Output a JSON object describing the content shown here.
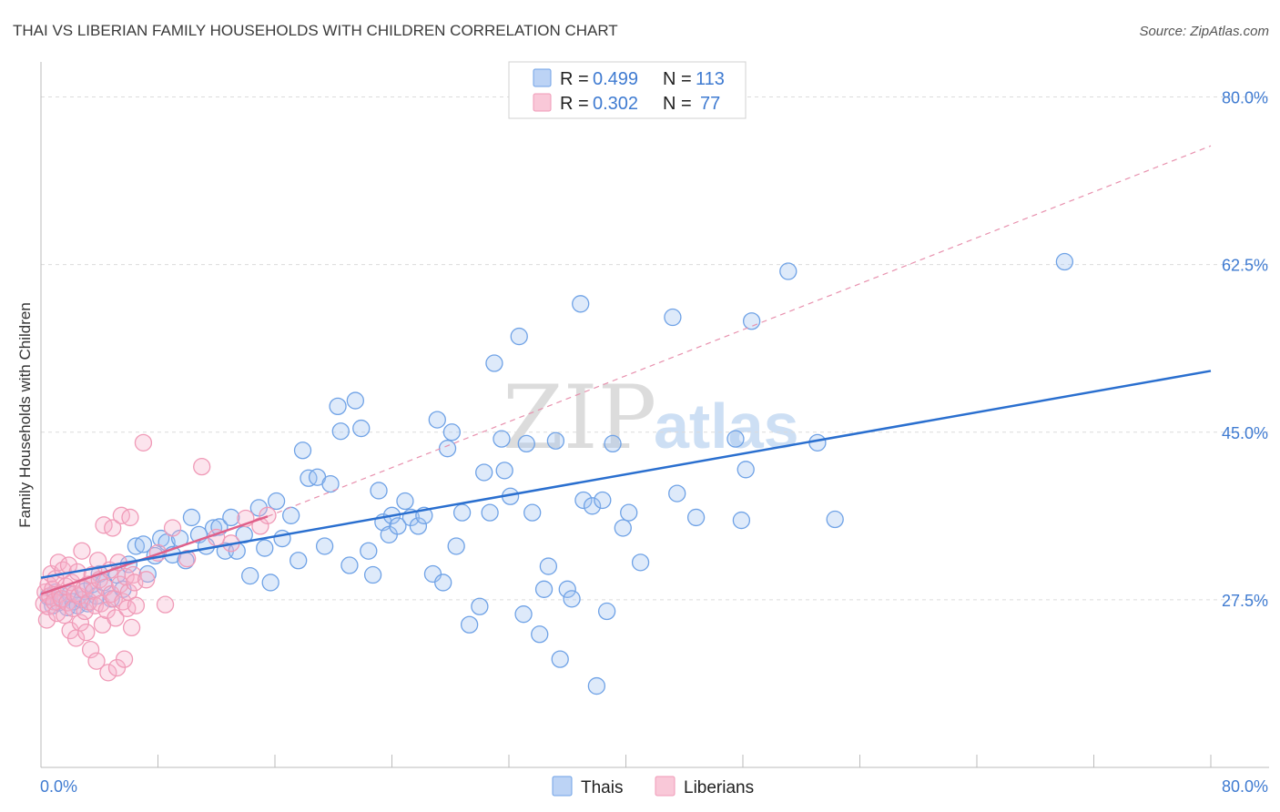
{
  "chart_data": {
    "type": "scatter",
    "title": "THAI VS LIBERIAN FAMILY HOUSEHOLDS WITH CHILDREN CORRELATION CHART",
    "source": "Source: ZipAtlas.com",
    "xlabel": "",
    "ylabel": "Family Households with Children",
    "xlim": [
      0,
      80
    ],
    "ylim": [
      10,
      83
    ],
    "x_tick_labels": [
      "0.0%",
      "80.0%"
    ],
    "y_ticks": [
      27.5,
      45.0,
      62.5,
      80.0
    ],
    "y_tick_labels": [
      "27.5%",
      "45.0%",
      "62.5%",
      "80.0%"
    ],
    "grid": true,
    "watermark": {
      "zip": "ZIP",
      "atlas": "atlas"
    },
    "legend": {
      "rows": [
        {
          "r_label": "R =",
          "r_value": "0.499",
          "n_label": "N =",
          "n_value": "113"
        },
        {
          "r_label": "R =",
          "r_value": "0.302",
          "n_label": "N =",
          "n_value": "77"
        }
      ]
    },
    "series": [
      {
        "name": "Thais",
        "color": "#6fa2e6",
        "line_color": "#2a6fcf",
        "trend": {
          "x": [
            0,
            80
          ],
          "y": [
            29.8,
            51.4
          ]
        },
        "points": [
          [
            0.5,
            27.8
          ],
          [
            0.8,
            26.9
          ],
          [
            1.0,
            28.3
          ],
          [
            1.2,
            27.2
          ],
          [
            1.5,
            27.6
          ],
          [
            1.8,
            26.7
          ],
          [
            2.0,
            28.1
          ],
          [
            2.2,
            27.3
          ],
          [
            2.5,
            26.9
          ],
          [
            2.8,
            27.5
          ],
          [
            3.0,
            28.4
          ],
          [
            3.2,
            27.1
          ],
          [
            3.5,
            29.1
          ],
          [
            3.8,
            27.9
          ],
          [
            4.0,
            30.2
          ],
          [
            4.3,
            29.3
          ],
          [
            4.8,
            27.6
          ],
          [
            5.2,
            30.1
          ],
          [
            5.6,
            28.6
          ],
          [
            6.0,
            31.2
          ],
          [
            6.5,
            33.1
          ],
          [
            7.0,
            33.3
          ],
          [
            7.3,
            30.2
          ],
          [
            7.8,
            32.1
          ],
          [
            8.2,
            33.9
          ],
          [
            8.6,
            33.5
          ],
          [
            9.0,
            32.2
          ],
          [
            9.5,
            33.9
          ],
          [
            9.9,
            31.6
          ],
          [
            10.3,
            36.1
          ],
          [
            10.8,
            34.3
          ],
          [
            11.3,
            33.1
          ],
          [
            11.8,
            35.0
          ],
          [
            12.2,
            35.1
          ],
          [
            12.6,
            32.6
          ],
          [
            13.0,
            36.1
          ],
          [
            13.4,
            32.6
          ],
          [
            13.9,
            34.3
          ],
          [
            14.3,
            30.0
          ],
          [
            14.9,
            37.1
          ],
          [
            15.3,
            32.9
          ],
          [
            15.7,
            29.3
          ],
          [
            16.1,
            37.8
          ],
          [
            16.5,
            33.9
          ],
          [
            17.1,
            36.3
          ],
          [
            17.6,
            31.6
          ],
          [
            17.9,
            43.1
          ],
          [
            18.3,
            40.2
          ],
          [
            18.9,
            40.3
          ],
          [
            19.4,
            33.1
          ],
          [
            19.8,
            39.6
          ],
          [
            20.3,
            47.7
          ],
          [
            20.5,
            45.1
          ],
          [
            21.1,
            31.1
          ],
          [
            21.5,
            48.3
          ],
          [
            21.9,
            45.4
          ],
          [
            22.4,
            32.6
          ],
          [
            22.7,
            30.1
          ],
          [
            23.1,
            38.9
          ],
          [
            23.4,
            35.6
          ],
          [
            23.8,
            34.3
          ],
          [
            24.0,
            36.3
          ],
          [
            24.4,
            35.2
          ],
          [
            24.9,
            37.8
          ],
          [
            25.3,
            36.1
          ],
          [
            25.8,
            35.2
          ],
          [
            26.2,
            36.3
          ],
          [
            26.8,
            30.2
          ],
          [
            27.1,
            46.3
          ],
          [
            27.5,
            29.3
          ],
          [
            27.8,
            43.3
          ],
          [
            28.1,
            45.0
          ],
          [
            28.4,
            33.1
          ],
          [
            28.8,
            36.6
          ],
          [
            29.3,
            24.9
          ],
          [
            30.0,
            26.8
          ],
          [
            30.3,
            40.8
          ],
          [
            30.7,
            36.6
          ],
          [
            31.0,
            52.2
          ],
          [
            31.5,
            44.3
          ],
          [
            31.7,
            41.0
          ],
          [
            32.1,
            38.3
          ],
          [
            32.7,
            55.0
          ],
          [
            33.0,
            26.0
          ],
          [
            33.2,
            43.8
          ],
          [
            33.6,
            36.6
          ],
          [
            34.1,
            23.9
          ],
          [
            34.4,
            28.6
          ],
          [
            34.7,
            31.0
          ],
          [
            35.2,
            44.1
          ],
          [
            35.5,
            21.3
          ],
          [
            36.0,
            28.6
          ],
          [
            36.3,
            27.6
          ],
          [
            36.9,
            58.4
          ],
          [
            37.1,
            37.9
          ],
          [
            37.7,
            37.3
          ],
          [
            38.0,
            18.5
          ],
          [
            38.4,
            37.9
          ],
          [
            38.7,
            26.3
          ],
          [
            39.1,
            43.8
          ],
          [
            39.8,
            35.0
          ],
          [
            40.2,
            36.6
          ],
          [
            41.0,
            31.4
          ],
          [
            43.2,
            57.0
          ],
          [
            43.5,
            38.6
          ],
          [
            44.8,
            36.1
          ],
          [
            47.5,
            44.3
          ],
          [
            47.9,
            35.8
          ],
          [
            48.2,
            41.1
          ],
          [
            48.6,
            56.6
          ],
          [
            51.1,
            61.8
          ],
          [
            53.1,
            43.9
          ],
          [
            54.3,
            35.9
          ],
          [
            70.0,
            62.8
          ]
        ]
      },
      {
        "name": "Liberians",
        "color": "#f09ab7",
        "line_color": "#e0608a",
        "trend": {
          "x": [
            0,
            15.5
          ],
          "y": [
            28.1,
            36.2
          ]
        },
        "trend_dashed": {
          "x": [
            15.5,
            80
          ],
          "y": [
            36.2,
            74.9
          ]
        },
        "points": [
          [
            0.2,
            27.1
          ],
          [
            0.3,
            28.3
          ],
          [
            0.4,
            25.4
          ],
          [
            0.5,
            29.1
          ],
          [
            0.5,
            26.8
          ],
          [
            0.6,
            27.9
          ],
          [
            0.7,
            30.2
          ],
          [
            0.8,
            28.6
          ],
          [
            0.9,
            27.3
          ],
          [
            1.0,
            29.7
          ],
          [
            1.1,
            26.1
          ],
          [
            1.2,
            31.4
          ],
          [
            1.3,
            28.1
          ],
          [
            1.4,
            27.6
          ],
          [
            1.5,
            30.6
          ],
          [
            1.6,
            25.9
          ],
          [
            1.7,
            28.9
          ],
          [
            1.8,
            27.2
          ],
          [
            1.9,
            31.1
          ],
          [
            2.0,
            24.3
          ],
          [
            2.1,
            29.3
          ],
          [
            2.2,
            26.6
          ],
          [
            2.3,
            28.1
          ],
          [
            2.4,
            23.5
          ],
          [
            2.5,
            30.4
          ],
          [
            2.6,
            27.9
          ],
          [
            2.7,
            25.1
          ],
          [
            2.8,
            32.6
          ],
          [
            2.9,
            28.6
          ],
          [
            3.0,
            26.3
          ],
          [
            3.1,
            24.1
          ],
          [
            3.2,
            29.1
          ],
          [
            3.3,
            27.3
          ],
          [
            3.4,
            22.3
          ],
          [
            3.5,
            30.1
          ],
          [
            3.6,
            28.4
          ],
          [
            3.7,
            26.9
          ],
          [
            3.8,
            21.1
          ],
          [
            3.9,
            31.6
          ],
          [
            4.0,
            29.6
          ],
          [
            4.1,
            27.1
          ],
          [
            4.2,
            24.9
          ],
          [
            4.3,
            35.3
          ],
          [
            4.4,
            28.8
          ],
          [
            4.5,
            26.4
          ],
          [
            4.6,
            19.9
          ],
          [
            4.7,
            30.6
          ],
          [
            4.8,
            28.1
          ],
          [
            4.9,
            35.0
          ],
          [
            5.0,
            27.6
          ],
          [
            5.1,
            25.6
          ],
          [
            5.2,
            20.4
          ],
          [
            5.3,
            31.4
          ],
          [
            5.4,
            29.1
          ],
          [
            5.5,
            36.3
          ],
          [
            5.6,
            27.3
          ],
          [
            5.7,
            21.3
          ],
          [
            5.8,
            29.9
          ],
          [
            5.9,
            26.6
          ],
          [
            6.0,
            28.3
          ],
          [
            6.1,
            36.1
          ],
          [
            6.2,
            24.6
          ],
          [
            6.3,
            30.1
          ],
          [
            6.4,
            29.3
          ],
          [
            6.5,
            26.9
          ],
          [
            7.0,
            43.9
          ],
          [
            7.2,
            29.6
          ],
          [
            8.0,
            32.4
          ],
          [
            8.5,
            27.0
          ],
          [
            9.0,
            35.0
          ],
          [
            10.0,
            31.8
          ],
          [
            11.0,
            41.4
          ],
          [
            12.0,
            34.0
          ],
          [
            13.0,
            33.4
          ],
          [
            14.0,
            36.0
          ],
          [
            15.0,
            35.2
          ],
          [
            15.5,
            36.3
          ]
        ]
      }
    ]
  }
}
